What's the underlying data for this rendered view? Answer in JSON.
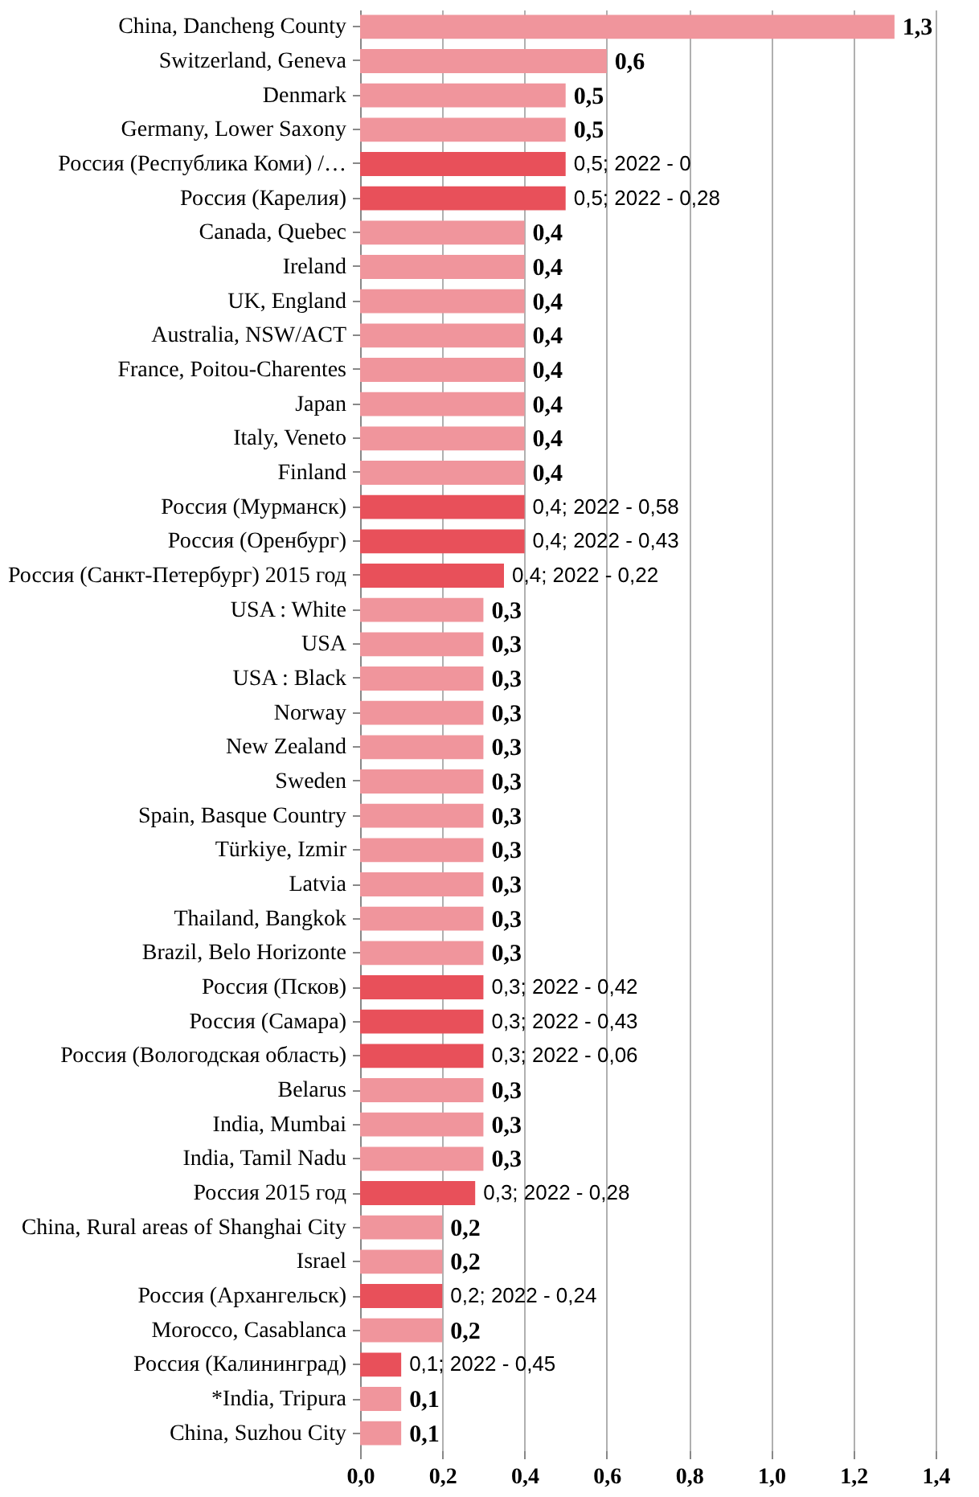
{
  "chart_data": {
    "type": "bar",
    "orientation": "horizontal",
    "categories": [
      "China, Dancheng County",
      "Switzerland, Geneva",
      "Denmark",
      "Germany, Lower Saxony",
      "Россия (Республика Коми) /…",
      "Россия (Карелия)",
      "Canada, Quebec",
      "Ireland",
      "UK, England",
      "Australia, NSW/ACT",
      "France, Poitou-Charentes",
      "Japan",
      "Italy, Veneto",
      "Finland",
      "Россия (Мурманск)",
      "Россия (Оренбург)",
      "Россия (Санкт-Петербург) 2015 год",
      "USA : White",
      "USA",
      "USA : Black",
      "Norway",
      "New Zealand",
      "Sweden",
      "Spain, Basque Country",
      "Türkiye, Izmir",
      "Latvia",
      "Thailand, Bangkok",
      "Brazil, Belo Horizonte",
      "Россия (Псков)",
      "Россия (Самара)",
      "Россия (Вологодская область)",
      "Belarus",
      "India, Mumbai",
      "India, Tamil Nadu",
      "Россия 2015 год",
      "China, Rural areas of Shanghai City",
      "Israel",
      "Россия (Архангельск)",
      "Morocco, Casablanca",
      "Россия (Калининград)",
      "*India, Tripura",
      "China, Suzhou City"
    ],
    "values": [
      1.3,
      0.6,
      0.5,
      0.5,
      0.5,
      0.5,
      0.4,
      0.4,
      0.4,
      0.4,
      0.4,
      0.4,
      0.4,
      0.4,
      0.4,
      0.4,
      0.35,
      0.3,
      0.3,
      0.3,
      0.3,
      0.3,
      0.3,
      0.3,
      0.3,
      0.3,
      0.3,
      0.3,
      0.3,
      0.3,
      0.3,
      0.3,
      0.3,
      0.3,
      0.28,
      0.2,
      0.2,
      0.2,
      0.2,
      0.1,
      0.1,
      0.1
    ],
    "colors": [
      "#f0959c",
      "#f0959c",
      "#f0959c",
      "#f0959c",
      "#e8505a",
      "#e8505a",
      "#f0959c",
      "#f0959c",
      "#f0959c",
      "#f0959c",
      "#f0959c",
      "#f0959c",
      "#f0959c",
      "#f0959c",
      "#e8505a",
      "#e8505a",
      "#e8505a",
      "#f0959c",
      "#f0959c",
      "#f0959c",
      "#f0959c",
      "#f0959c",
      "#f0959c",
      "#f0959c",
      "#f0959c",
      "#f0959c",
      "#f0959c",
      "#f0959c",
      "#e8505a",
      "#e8505a",
      "#e8505a",
      "#f0959c",
      "#f0959c",
      "#f0959c",
      "#e8505a",
      "#f0959c",
      "#f0959c",
      "#e8505a",
      "#f0959c",
      "#e8505a",
      "#f0959c",
      "#f0959c"
    ],
    "value_labels": [
      "1,3",
      "0,6",
      "0,5",
      "0,5",
      "0,5; 2022 - 0",
      "0,5; 2022 - 0,28",
      "0,4",
      "0,4",
      "0,4",
      "0,4",
      "0,4",
      "0,4",
      "0,4",
      "0,4",
      "0,4; 2022 - 0,58",
      "0,4; 2022 - 0,43",
      "0,4; 2022 - 0,22",
      "0,3",
      "0,3",
      "0,3",
      "0,3",
      "0,3",
      "0,3",
      "0,3",
      "0,3",
      "0,3",
      "0,3",
      "0,3",
      "0,3; 2022 - 0,42",
      "0,3; 2022 - 0,43",
      "0,3; 2022 - 0,06",
      "0,3",
      "0,3",
      "0,3",
      "0,3; 2022 - 0,28",
      "0,2",
      "0,2",
      "0,2; 2022 - 0,24",
      "0,2",
      "0,1; 2022 - 0,45",
      "0,1",
      "0,1"
    ],
    "xlim": [
      0,
      1.4
    ],
    "xticks": [
      {
        "value": 0,
        "label": "0,0"
      },
      {
        "value": 0.2,
        "label": "0,2"
      },
      {
        "value": 0.4,
        "label": "0,4"
      },
      {
        "value": 0.6,
        "label": "0,6"
      },
      {
        "value": 0.8,
        "label": "0,8"
      },
      {
        "value": 1.0,
        "label": "1,0"
      },
      {
        "value": 1.2,
        "label": "1,2"
      },
      {
        "value": 1.4,
        "label": "1,4"
      }
    ],
    "grid": "x"
  }
}
